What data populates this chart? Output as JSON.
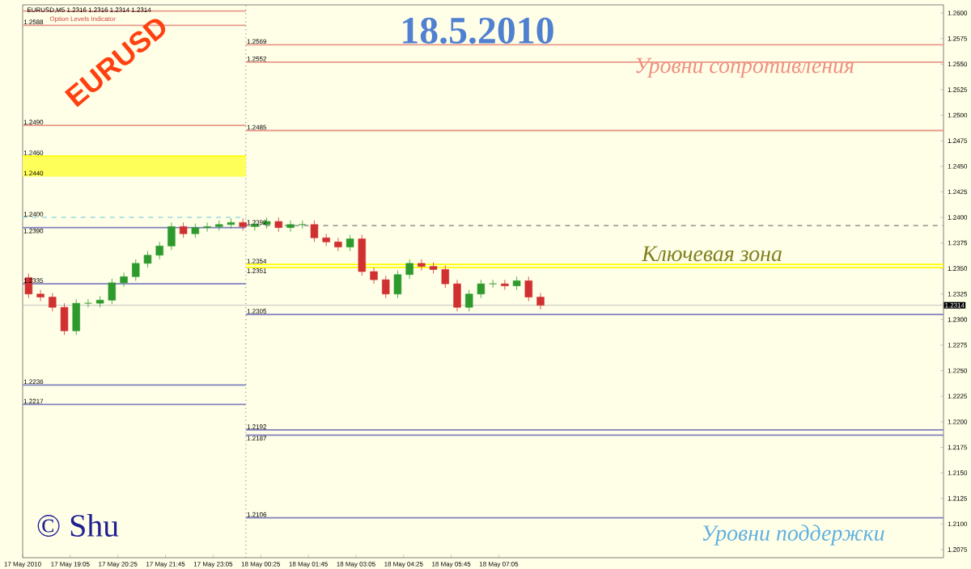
{
  "chart_data": {
    "type": "candlestick",
    "title": "18.5.2010",
    "x": [
      "2010-05-17T17:55",
      "2010-05-17T18:15",
      "2010-05-17T18:35",
      "2010-05-17T18:55",
      "2010-05-17T19:15",
      "2010-05-17T19:35",
      "2010-05-17T19:55",
      "2010-05-17T20:15",
      "2010-05-17T20:35",
      "2010-05-17T20:55",
      "2010-05-17T21:15",
      "2010-05-17T21:35",
      "2010-05-17T21:55",
      "2010-05-17T22:15",
      "2010-05-17T22:35",
      "2010-05-17T22:55",
      "2010-05-17T23:15",
      "2010-05-17T23:35",
      "2010-05-17T23:55",
      "2010-05-18T00:15",
      "2010-05-18T00:35",
      "2010-05-18T00:55",
      "2010-05-18T01:15",
      "2010-05-18T01:35",
      "2010-05-18T01:55",
      "2010-05-18T02:15",
      "2010-05-18T02:35",
      "2010-05-18T02:55",
      "2010-05-18T03:15",
      "2010-05-18T03:35",
      "2010-05-18T03:55",
      "2010-05-18T04:15",
      "2010-05-18T04:35",
      "2010-05-18T04:55",
      "2010-05-18T05:15",
      "2010-05-18T05:35",
      "2010-05-18T05:55",
      "2010-05-18T06:15",
      "2010-05-18T06:35",
      "2010-05-18T06:55",
      "2010-05-18T07:15",
      "2010-05-18T07:35",
      "2010-05-18T07:55",
      "2010-05-18T08:15"
    ],
    "ohlc": [
      [
        1.2341,
        1.2345,
        1.2321,
        1.2325
      ],
      [
        1.2325,
        1.2329,
        1.2318,
        1.2322
      ],
      [
        1.2322,
        1.2326,
        1.2308,
        1.2312
      ],
      [
        1.2312,
        1.2316,
        1.2285,
        1.2289
      ],
      [
        1.2289,
        1.232,
        1.2285,
        1.2316
      ],
      [
        1.2316,
        1.232,
        1.2312,
        1.2316
      ],
      [
        1.2316,
        1.2323,
        1.2312,
        1.2319
      ],
      [
        1.2319,
        1.234,
        1.2315,
        1.2336
      ],
      [
        1.2336,
        1.2346,
        1.2332,
        1.2342
      ],
      [
        1.2342,
        1.2359,
        1.2338,
        1.2355
      ],
      [
        1.2355,
        1.2367,
        1.2351,
        1.2363
      ],
      [
        1.2363,
        1.2376,
        1.2359,
        1.2372
      ],
      [
        1.2372,
        1.2395,
        1.2368,
        1.2391
      ],
      [
        1.2391,
        1.2395,
        1.238,
        1.2384
      ],
      [
        1.2384,
        1.2394,
        1.238,
        1.239
      ],
      [
        1.239,
        1.2395,
        1.2386,
        1.2391
      ],
      [
        1.2391,
        1.2397,
        1.2387,
        1.2393
      ],
      [
        1.2393,
        1.2399,
        1.2389,
        1.2395
      ],
      [
        1.2395,
        1.2399,
        1.2387,
        1.2391
      ],
      [
        1.2391,
        1.2397,
        1.2387,
        1.2393
      ],
      [
        1.2393,
        1.24,
        1.2389,
        1.2396
      ],
      [
        1.2396,
        1.24,
        1.2386,
        1.239
      ],
      [
        1.239,
        1.2397,
        1.2386,
        1.2393
      ],
      [
        1.2393,
        1.2397,
        1.2389,
        1.2393
      ],
      [
        1.2393,
        1.2397,
        1.2376,
        1.238
      ],
      [
        1.238,
        1.2384,
        1.2372,
        1.2376
      ],
      [
        1.2376,
        1.238,
        1.2367,
        1.2371
      ],
      [
        1.2371,
        1.2383,
        1.2367,
        1.2379
      ],
      [
        1.2379,
        1.2383,
        1.2343,
        1.2347
      ],
      [
        1.2347,
        1.2351,
        1.2335,
        1.2339
      ],
      [
        1.2339,
        1.2343,
        1.2321,
        1.2325
      ],
      [
        1.2325,
        1.2348,
        1.2321,
        1.2344
      ],
      [
        1.2344,
        1.2359,
        1.234,
        1.2355
      ],
      [
        1.2355,
        1.2359,
        1.2348,
        1.2352
      ],
      [
        1.2352,
        1.2356,
        1.2345,
        1.2349
      ],
      [
        1.2349,
        1.2353,
        1.2331,
        1.2335
      ],
      [
        1.2335,
        1.2339,
        1.2308,
        1.2312
      ],
      [
        1.2312,
        1.2329,
        1.2308,
        1.2325
      ],
      [
        1.2325,
        1.2339,
        1.2321,
        1.2335
      ],
      [
        1.2335,
        1.2339,
        1.2331,
        1.2335
      ],
      [
        1.2335,
        1.2339,
        1.2329,
        1.2333
      ],
      [
        1.2333,
        1.2342,
        1.2329,
        1.2338
      ],
      [
        1.2338,
        1.2342,
        1.2318,
        1.2322
      ],
      [
        1.2322,
        1.2326,
        1.231,
        1.2314
      ]
    ],
    "xlim": [
      "2010-05-17T17:45",
      "2010-05-18T19:32"
    ],
    "ylim": [
      1.2067,
      1.2608
    ],
    "xticks": [
      {
        "value": "2010-05-17T17:45",
        "label": "17 May 2010"
      },
      {
        "value": "2010-05-17T19:05",
        "label": "17 May 19:05"
      },
      {
        "value": "2010-05-17T20:25",
        "label": "17 May 20:25"
      },
      {
        "value": "2010-05-17T21:45",
        "label": "17 May 21:45"
      },
      {
        "value": "2010-05-17T23:05",
        "label": "17 May 23:05"
      },
      {
        "value": "2010-05-18T00:25",
        "label": "18 May 00:25"
      },
      {
        "value": "2010-05-18T01:45",
        "label": "18 May 01:45"
      },
      {
        "value": "2010-05-18T03:05",
        "label": "18 May 03:05"
      },
      {
        "value": "2010-05-18T04:25",
        "label": "18 May 04:25"
      },
      {
        "value": "2010-05-18T05:45",
        "label": "18 May 05:45"
      },
      {
        "value": "2010-05-18T07:05",
        "label": "18 May 07:05"
      }
    ],
    "yticks": [
      {
        "value": 1.26,
        "label": "1.2600"
      },
      {
        "value": 1.2575,
        "label": "1.2575"
      },
      {
        "value": 1.255,
        "label": "1.2550"
      },
      {
        "value": 1.2525,
        "label": "1.2525"
      },
      {
        "value": 1.25,
        "label": "1.2500"
      },
      {
        "value": 1.2475,
        "label": "1.2475"
      },
      {
        "value": 1.245,
        "label": "1.2450"
      },
      {
        "value": 1.2425,
        "label": "1.2425"
      },
      {
        "value": 1.24,
        "label": "1.2400"
      },
      {
        "value": 1.2375,
        "label": "1.2375"
      },
      {
        "value": 1.235,
        "label": "1.2350"
      },
      {
        "value": 1.2325,
        "label": "1.2325"
      },
      {
        "value": 1.23,
        "label": "1.2300"
      },
      {
        "value": 1.2275,
        "label": "1.2275"
      },
      {
        "value": 1.225,
        "label": "1.2250"
      },
      {
        "value": 1.2225,
        "label": "1.2225"
      },
      {
        "value": 1.22,
        "label": "1.2200"
      },
      {
        "value": 1.2175,
        "label": "1.2175"
      },
      {
        "value": 1.215,
        "label": "1.2150"
      },
      {
        "value": 1.2125,
        "label": "1.2125"
      },
      {
        "value": 1.21,
        "label": "1.2100"
      },
      {
        "value": 1.2075,
        "label": "1.2075"
      }
    ],
    "series": [
      {
        "type": "line",
        "x": [
          "2010-05-17T17:45",
          "2010-05-18T00:00"
        ],
        "values": [
          1.2602,
          1.2602
        ],
        "color": "#e89a8a"
      },
      {
        "type": "line",
        "x": [
          "2010-05-17T17:45",
          "2010-05-18T00:00"
        ],
        "values": [
          1.2588,
          1.2588
        ],
        "color": "#e89a8a"
      },
      {
        "type": "line",
        "x": [
          "2010-05-17T17:45",
          "2010-05-18T00:00"
        ],
        "values": [
          1.249,
          1.249
        ],
        "color": "#e89a8a"
      },
      {
        "type": "line",
        "x": [
          "2010-05-17T17:45",
          "2010-05-18T00:00"
        ],
        "values": [
          1.246,
          1.246
        ],
        "lower": [
          1.244,
          1.244
        ],
        "upper": [
          1.246,
          1.246
        ],
        "color": "#ffff00"
      },
      {
        "type": "line",
        "x": [
          "2010-05-17T17:45",
          "2010-05-18T00:00"
        ],
        "values": [
          1.24,
          1.24
        ],
        "color": "#a8dede",
        "line_style": "dashed"
      },
      {
        "type": "line",
        "x": [
          "2010-05-17T17:45",
          "2010-05-18T00:00"
        ],
        "values": [
          1.239,
          1.239
        ],
        "color": "#8080c0"
      },
      {
        "type": "line",
        "x": [
          "2010-05-17T17:45",
          "2010-05-18T00:00"
        ],
        "values": [
          1.2335,
          1.2335
        ],
        "color": "#8080c0"
      },
      {
        "type": "line",
        "x": [
          "2010-05-17T17:45",
          "2010-05-18T00:00"
        ],
        "values": [
          1.2236,
          1.2236
        ],
        "color": "#8080c0"
      },
      {
        "type": "line",
        "x": [
          "2010-05-17T17:45",
          "2010-05-18T00:00"
        ],
        "values": [
          1.2217,
          1.2217
        ],
        "color": "#8080c0"
      },
      {
        "type": "line",
        "x": [
          "2010-05-18T00:00",
          "2010-05-18T19:32"
        ],
        "values": [
          1.2569,
          1.2569
        ],
        "color": "#e89a8a"
      },
      {
        "type": "line",
        "x": [
          "2010-05-18T00:00",
          "2010-05-18T19:32"
        ],
        "values": [
          1.2552,
          1.2552
        ],
        "color": "#e89a8a"
      },
      {
        "type": "line",
        "x": [
          "2010-05-18T00:00",
          "2010-05-18T19:32"
        ],
        "values": [
          1.2485,
          1.2485
        ],
        "color": "#e89a8a"
      },
      {
        "type": "line",
        "x": [
          "2010-05-18T00:00",
          "2010-05-18T19:32"
        ],
        "values": [
          1.2392,
          1.2392
        ],
        "color": "#a0a0a0",
        "line_style": "dashed"
      },
      {
        "type": "line",
        "x": [
          "2010-05-18T00:00",
          "2010-05-18T19:32"
        ],
        "values": [
          1.2354,
          1.2354
        ],
        "color": "#ffff00"
      },
      {
        "type": "line",
        "x": [
          "2010-05-18T00:00",
          "2010-05-18T19:32"
        ],
        "values": [
          1.2351,
          1.2351
        ],
        "color": "#ffff00"
      },
      {
        "type": "line",
        "x": [
          "2010-05-18T00:00",
          "2010-05-18T19:32"
        ],
        "values": [
          1.2305,
          1.2305
        ],
        "color": "#8080c0"
      },
      {
        "type": "line",
        "x": [
          "2010-05-18T00:00",
          "2010-05-18T19:32"
        ],
        "values": [
          1.2192,
          1.2192
        ],
        "color": "#8080c0"
      },
      {
        "type": "line",
        "x": [
          "2010-05-18T00:00",
          "2010-05-18T19:32"
        ],
        "values": [
          1.2187,
          1.2187
        ],
        "color": "#8080c0"
      },
      {
        "type": "line",
        "x": [
          "2010-05-18T00:00",
          "2010-05-18T19:32"
        ],
        "values": [
          1.2106,
          1.2106
        ],
        "color": "#8080c0"
      }
    ],
    "ref_lines": [
      {
        "axis": "y",
        "value": 1.2314,
        "label": "1.2314",
        "color": "#c0c0c0"
      },
      {
        "axis": "x",
        "value": "2010-05-18T00:00",
        "color": "#606060",
        "line_style": "dotted"
      }
    ],
    "annotations": [
      "EURUSD,M5  1.2316 1.2316 1.2314 1.2314",
      "Option Levels Indicator",
      "EURUSD",
      "Уровни сопротивления",
      "Ключевая зона",
      "Уровни поддержки",
      "© Shu",
      {
        "text": "1.2588",
        "x": "2010-05-17T17:45",
        "y": 1.2588
      },
      {
        "text": "1.2490",
        "x": "2010-05-17T17:45",
        "y": 1.249
      },
      {
        "text": "1.2460",
        "x": "2010-05-17T17:45",
        "y": 1.246
      },
      {
        "text": "1.2440",
        "x": "2010-05-17T17:45",
        "y": 1.244
      },
      {
        "text": "1.2400",
        "x": "2010-05-17T17:45",
        "y": 1.24
      },
      {
        "text": "1.2390",
        "x": "2010-05-17T17:45",
        "y": 1.239
      },
      {
        "text": "1.2335",
        "x": "2010-05-17T17:45",
        "y": 1.2335
      },
      {
        "text": "1.2236",
        "x": "2010-05-17T17:45",
        "y": 1.2236
      },
      {
        "text": "1.2217",
        "x": "2010-05-17T17:45",
        "y": 1.2217
      },
      {
        "text": "1.2569",
        "x": "2010-05-18T00:00",
        "y": 1.2569
      },
      {
        "text": "1.2552",
        "x": "2010-05-18T00:00",
        "y": 1.2552
      },
      {
        "text": "1.2485",
        "x": "2010-05-18T00:00",
        "y": 1.2485
      },
      {
        "text": "1.2392",
        "x": "2010-05-18T00:00",
        "y": 1.2392
      },
      {
        "text": "1.2354",
        "x": "2010-05-18T00:00",
        "y": 1.2354
      },
      {
        "text": "1.2351",
        "x": "2010-05-18T00:00",
        "y": 1.2351
      },
      {
        "text": "1.2305",
        "x": "2010-05-18T00:00",
        "y": 1.2305
      },
      {
        "text": "1.2192",
        "x": "2010-05-18T00:00",
        "y": 1.2192
      },
      {
        "text": "1.2187",
        "x": "2010-05-18T00:00",
        "y": 1.2187
      },
      {
        "text": "1.2106",
        "x": "2010-05-18T00:00",
        "y": 1.2106
      }
    ]
  }
}
